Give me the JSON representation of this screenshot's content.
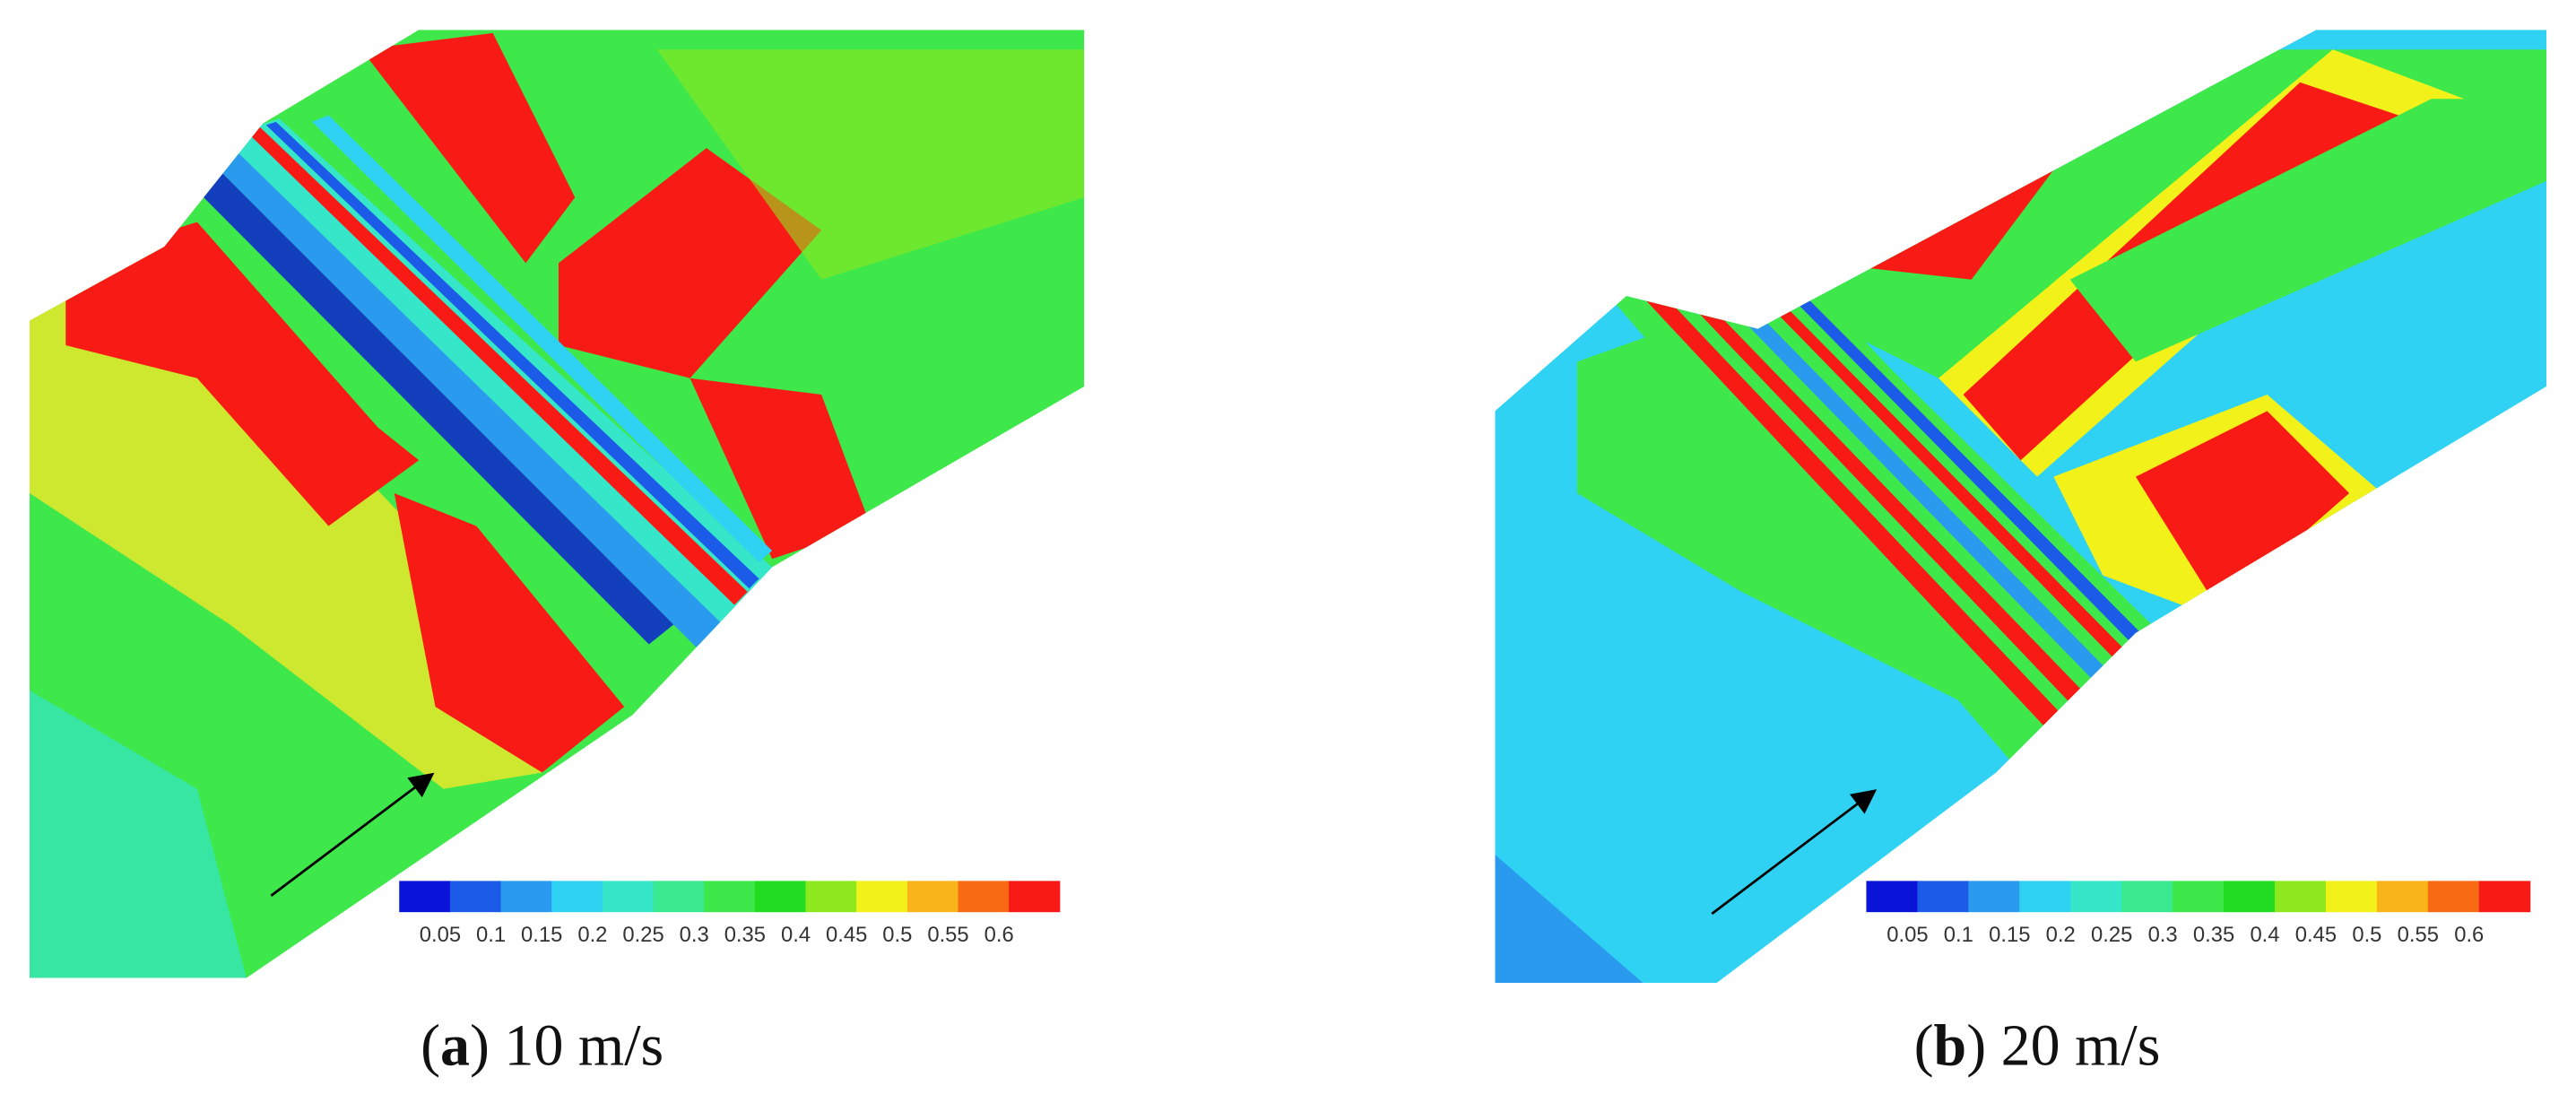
{
  "panels": [
    {
      "caption_parts": [
        "(",
        "a",
        ") 10 m/s"
      ],
      "colorbar_labels": [
        "0.05",
        "0.1",
        "0.15",
        "0.2",
        "0.25",
        "0.3",
        "0.35",
        "0.4",
        "0.45",
        "0.5",
        "0.55",
        "0.6"
      ]
    },
    {
      "caption_parts": [
        "(",
        "b",
        ") 20 m/s"
      ],
      "colorbar_labels": [
        "0.05",
        "0.1",
        "0.15",
        "0.2",
        "0.25",
        "0.3",
        "0.35",
        "0.4",
        "0.45",
        "0.5",
        "0.55",
        "0.6"
      ]
    }
  ],
  "colorbar_colors": [
    "#0a14d8",
    "#1c5ae8",
    "#2a9aee",
    "#2fd2f2",
    "#35e6c8",
    "#3ae890",
    "#3ee84a",
    "#22dc22",
    "#8ee81e",
    "#f2f21a",
    "#f8b418",
    "#f86a14",
    "#f81a14"
  ]
}
